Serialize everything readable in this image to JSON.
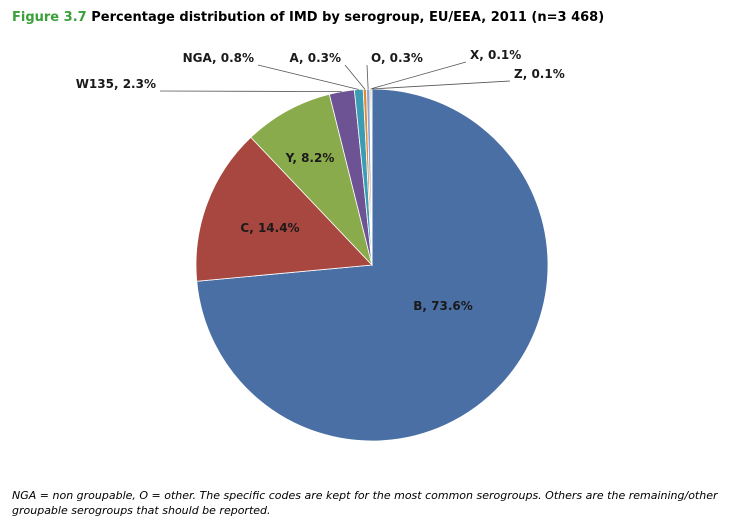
{
  "title": {
    "figure_label": "Figure 3.7",
    "text": "Percentage distribution of IMD by serogroup, EU/EEA, 2011 (n=3 468)"
  },
  "chart_data": {
    "type": "pie",
    "title": "Percentage distribution of IMD by serogroup, EU/EEA, 2011 (n=3 468)",
    "slices": [
      {
        "name": "B",
        "value": 73.6,
        "label": "B, 73.6%",
        "color": "#4A6FA5"
      },
      {
        "name": "C",
        "value": 14.4,
        "label": "C, 14.4%",
        "color": "#A8473F"
      },
      {
        "name": "Y",
        "value": 8.2,
        "label": "Y, 8.2%",
        "color": "#8AAB4C"
      },
      {
        "name": "W135",
        "value": 2.3,
        "label": "W135, 2.3%",
        "color": "#6E5394"
      },
      {
        "name": "NGA",
        "value": 0.8,
        "label": "NGA, 0.8%",
        "color": "#3A9DB3"
      },
      {
        "name": "A",
        "value": 0.3,
        "label": "A, 0.3%",
        "color": "#E08A3C"
      },
      {
        "name": "O",
        "value": 0.3,
        "label": "O, 0.3%",
        "color": "#8FA7CC"
      },
      {
        "name": "X",
        "value": 0.1,
        "label": "X, 0.1%",
        "color": "#C97A78"
      },
      {
        "name": "Z",
        "value": 0.1,
        "label": "Z, 0.1%",
        "color": "#B2C98A"
      }
    ]
  },
  "footnote": "NGA = non groupable, O = other. The specific codes are kept for the most common serogroups. Others are the remaining/other groupable serogroups that should be reported."
}
